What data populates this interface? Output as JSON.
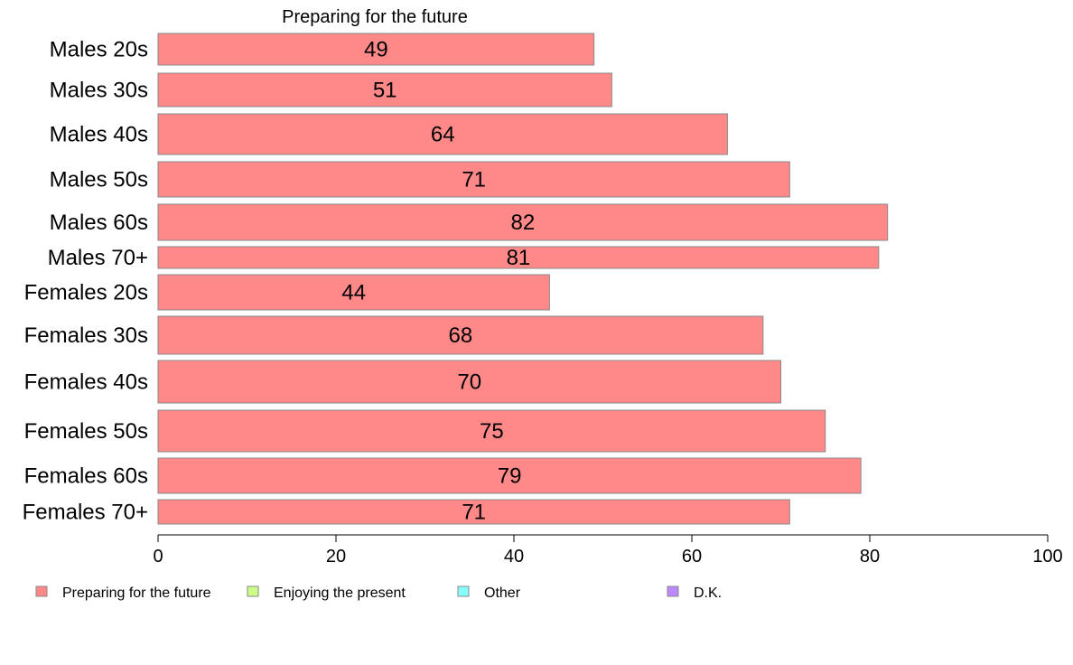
{
  "chart_data": {
    "type": "bar",
    "orientation": "horizontal",
    "title": "Preparing for the future",
    "categories": [
      "Males 20s",
      "Males 30s",
      "Males 40s",
      "Males 50s",
      "Males 60s",
      "Males 70+",
      "Females 20s",
      "Females 30s",
      "Females 40s",
      "Females 50s",
      "Females 60s",
      "Females 70+"
    ],
    "series": [
      {
        "name": "Preparing for the future",
        "color": "#ff8888",
        "values": [
          49,
          51,
          64,
          71,
          82,
          81,
          44,
          68,
          70,
          75,
          79,
          71
        ]
      }
    ],
    "data_labels": [
      "49",
      "51",
      "64",
      "71",
      "82",
      "81",
      "44",
      "68",
      "70",
      "75",
      "79",
      "71"
    ],
    "xlim": [
      0,
      100
    ],
    "x_ticks": [
      0,
      20,
      40,
      60,
      80,
      100
    ],
    "x_tick_labels": [
      "0",
      "20",
      "40",
      "60",
      "80",
      "100"
    ],
    "grid": false,
    "legend_position": "bottom",
    "legend": [
      {
        "label": "Preparing for the future",
        "color": "#ff8888"
      },
      {
        "label": "Enjoying the present",
        "color": "#ccff88"
      },
      {
        "label": "Other",
        "color": "#88ffff"
      },
      {
        "label": "D.K.",
        "color": "#bb88ff"
      }
    ]
  }
}
